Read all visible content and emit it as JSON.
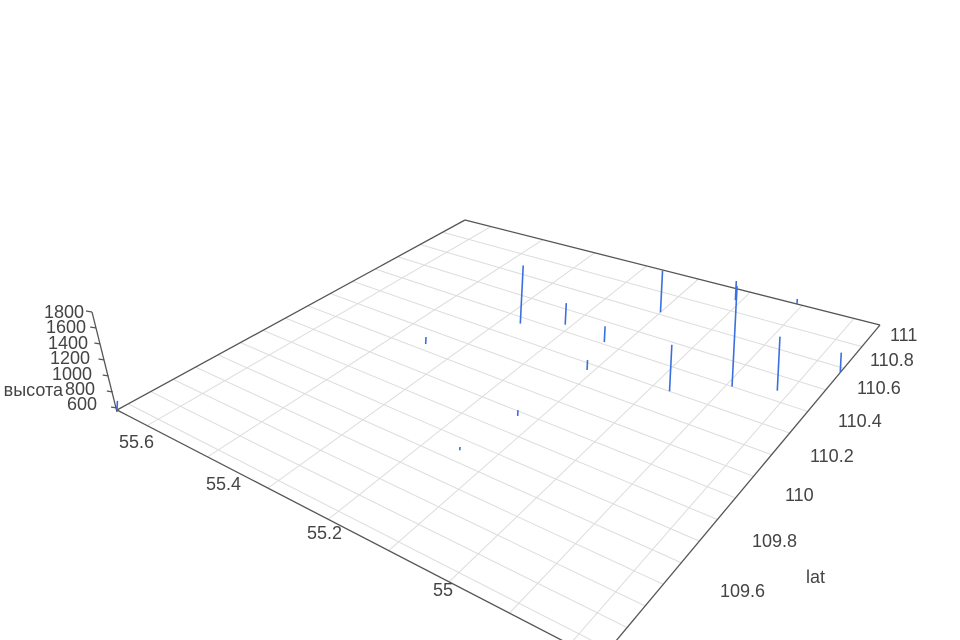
{
  "chart_data": {
    "type": "scatter3d-lines",
    "xaxis": {
      "title": "",
      "range": [
        54.85,
        55.65
      ],
      "ticks": [
        "55.6",
        "55.4",
        "55.2",
        "55"
      ]
    },
    "yaxis": {
      "title": "lat",
      "range": [
        109.45,
        111.0
      ],
      "ticks": [
        "111",
        "110.8",
        "110.6",
        "110.4",
        "110.2",
        "110",
        "109.8",
        "109.6"
      ]
    },
    "zaxis": {
      "title": "высота",
      "range": [
        600,
        1800
      ],
      "ticks": [
        "1800",
        "1600",
        "1400",
        "1200",
        "1000",
        "800",
        "600"
      ]
    },
    "grid": true,
    "line_color": "#3a6fe0",
    "segments": [
      {
        "x": 55.37,
        "y": 110.57,
        "z": [
          600,
          1300
        ]
      },
      {
        "x": 55.31,
        "y": 110.63,
        "z": [
          600,
          860
        ]
      },
      {
        "x": 55.23,
        "y": 110.61,
        "z": [
          600,
          790
        ]
      },
      {
        "x": 55.21,
        "y": 110.47,
        "z": [
          600,
          720
        ]
      },
      {
        "x": 55.2,
        "y": 110.81,
        "z": [
          600,
          1100
        ]
      },
      {
        "x": 55.07,
        "y": 110.5,
        "z": [
          600,
          1160
        ]
      },
      {
        "x": 54.99,
        "y": 110.6,
        "z": [
          600,
          1810
        ]
      },
      {
        "x": 55.11,
        "y": 110.95,
        "z": [
          600,
          830
        ]
      },
      {
        "x": 54.92,
        "y": 110.64,
        "z": [
          600,
          1250
        ]
      },
      {
        "x": 54.85,
        "y": 110.78,
        "z": [
          600,
          840
        ]
      },
      {
        "x": 55.01,
        "y": 111.0,
        "z": [
          600,
          660
        ]
      },
      {
        "x": 55.45,
        "y": 110.33,
        "z": [
          600,
          685
        ]
      },
      {
        "x": 55.23,
        "y": 110.18,
        "z": [
          600,
          670
        ]
      },
      {
        "x": 55.25,
        "y": 109.95,
        "z": [
          600,
          640
        ]
      },
      {
        "x": 55.65,
        "y": 109.45,
        "z": [
          600,
          710
        ]
      }
    ]
  }
}
